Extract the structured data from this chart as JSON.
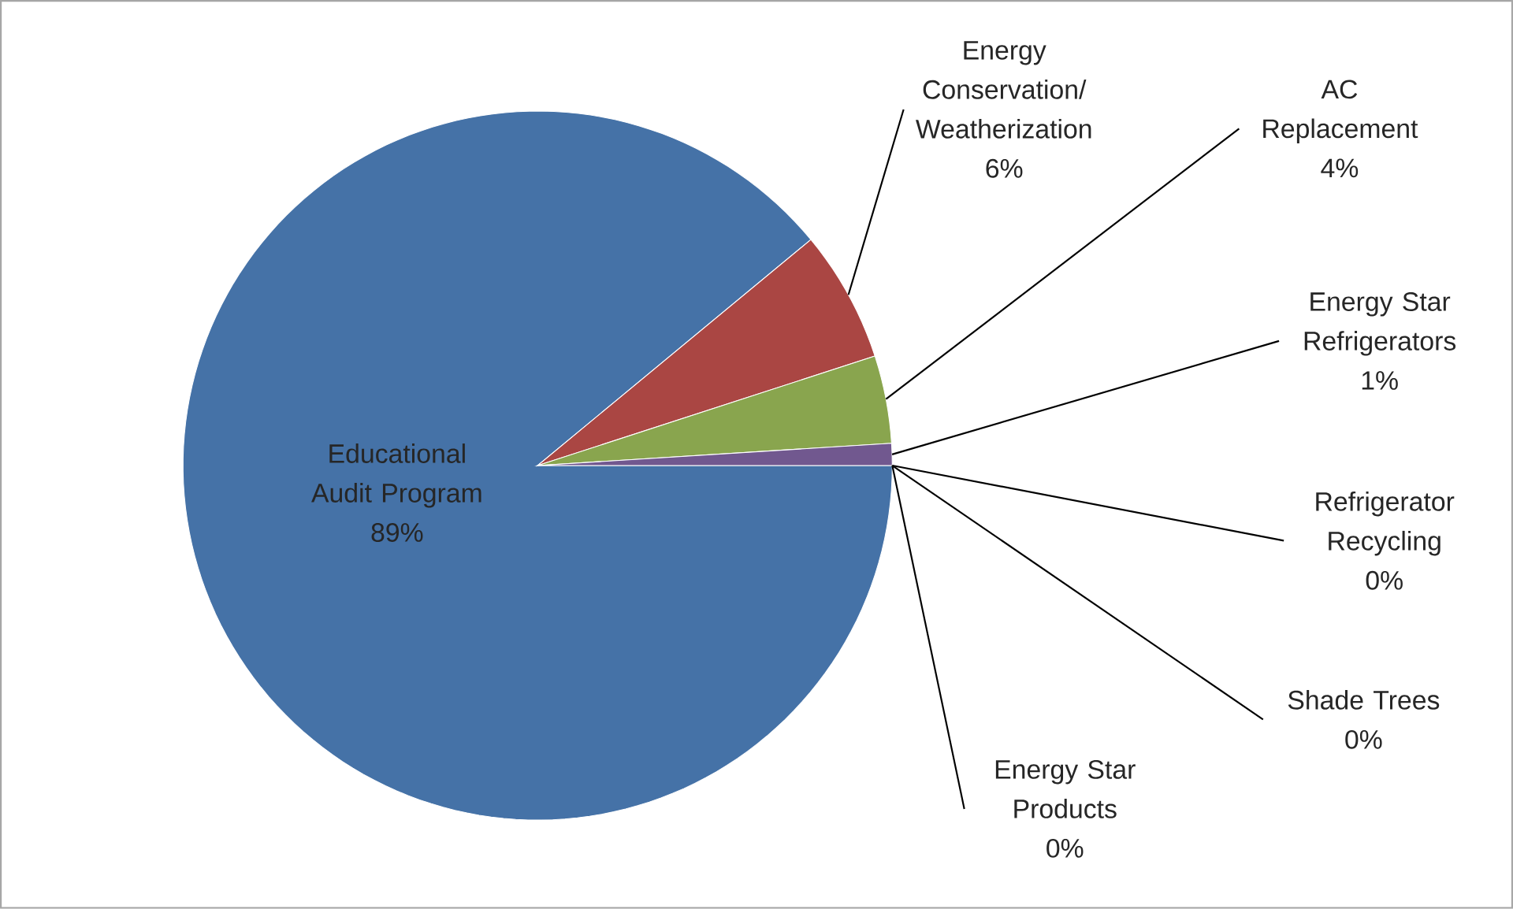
{
  "chart_data": {
    "type": "pie",
    "categories": [
      "Educational Audit Program",
      "Energy Conservation/ Weatherization",
      "AC Replacement",
      "Energy Star Refrigerators",
      "Refrigerator Recycling",
      "Shade Trees",
      "Energy Star Products"
    ],
    "values": [
      89,
      6,
      4,
      1,
      0,
      0,
      0
    ],
    "value_labels": [
      "89%",
      "6%",
      "4%",
      "1%",
      "0%",
      "0%",
      "0%"
    ],
    "colors": [
      "#4572a7",
      "#aa4643",
      "#89a54e",
      "#71588f",
      "#4198af",
      "#db843d",
      "#93a9cf"
    ]
  }
}
